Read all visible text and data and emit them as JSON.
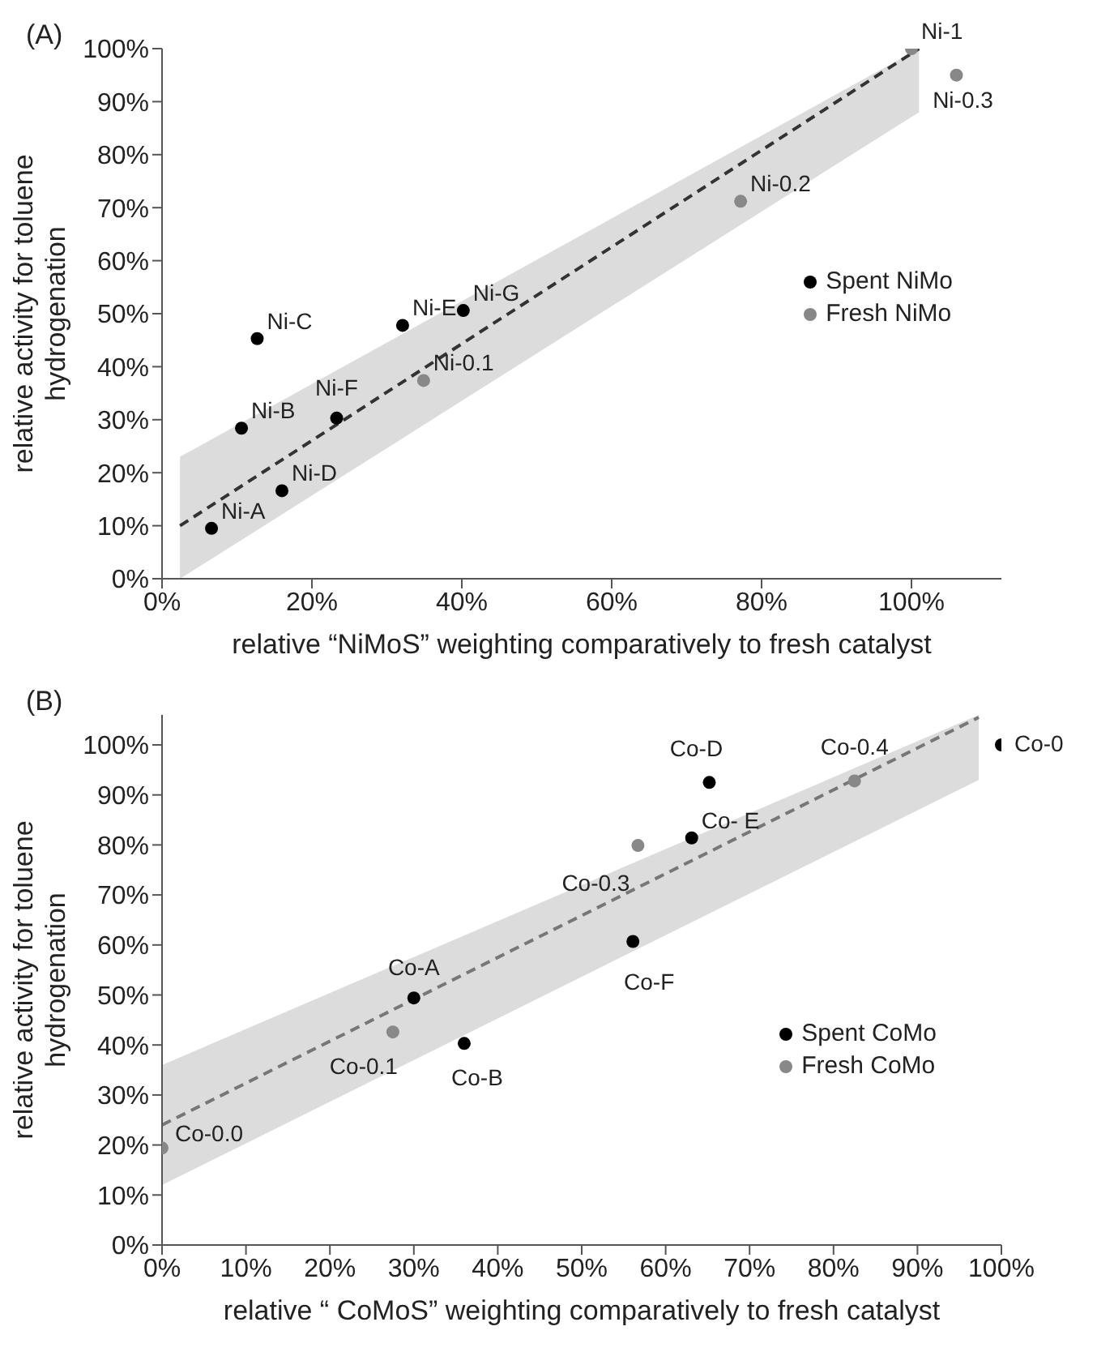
{
  "chart_data": [
    {
      "type": "scatter",
      "title": "(A)",
      "xlabel": "relative “NiMoS” weighting comparatively to fresh catalyst",
      "ylabel": "relative activity for toluene hydrogenation",
      "xlim": [
        0,
        112
      ],
      "ylim": [
        0,
        100
      ],
      "xticks": [
        {
          "value": 0,
          "label": "0%"
        },
        {
          "value": 20,
          "label": "20%"
        },
        {
          "value": 40,
          "label": "40%"
        },
        {
          "value": 60,
          "label": "60%"
        },
        {
          "value": 80,
          "label": "80%"
        },
        {
          "value": 100,
          "label": "100%"
        }
      ],
      "yticks": [
        {
          "value": 0,
          "label": "0%"
        },
        {
          "value": 10,
          "label": "10%"
        },
        {
          "value": 20,
          "label": "20%"
        },
        {
          "value": 30,
          "label": "30%"
        },
        {
          "value": 40,
          "label": "40%"
        },
        {
          "value": 50,
          "label": "50%"
        },
        {
          "value": 60,
          "label": "60%"
        },
        {
          "value": 70,
          "label": "70%"
        },
        {
          "value": 80,
          "label": "80%"
        },
        {
          "value": 90,
          "label": "90%"
        },
        {
          "value": 100,
          "label": "100%"
        }
      ],
      "grid": false,
      "legend": "right",
      "marker": "circle",
      "series": [
        {
          "type": "line",
          "color": "#333333",
          "line_style": "dashed",
          "marker": "none",
          "x": [
            2.4,
            101
          ],
          "values": [
            10,
            100
          ],
          "lower": [
            0,
            88
          ],
          "upper": [
            23,
            100
          ]
        },
        {
          "name": "Spent NiMo",
          "color": "#000000",
          "x": [
            6.6,
            10.6,
            12.7,
            16,
            32.1,
            23.3,
            40.2
          ],
          "values": [
            9.5,
            28.4,
            45.3,
            16.6,
            47.8,
            30.3,
            50.6
          ]
        },
        {
          "name": "Fresh NiMo",
          "color": "#888888",
          "x": [
            34.9,
            77.2,
            100,
            106
          ],
          "values": [
            37.4,
            71.2,
            100,
            95
          ]
        }
      ],
      "annotations": [
        {
          "text": "Ni-A",
          "x": 6.6,
          "y": 9.5
        },
        {
          "text": "Ni-B",
          "x": 10.6,
          "y": 28.4
        },
        {
          "text": "Ni-C",
          "x": 12.7,
          "y": 45.3
        },
        {
          "text": "Ni-D",
          "x": 16,
          "y": 16.6
        },
        {
          "text": "Ni-E",
          "x": 32.1,
          "y": 47.8
        },
        {
          "text": "Ni-F",
          "x": 23.3,
          "y": 30.3
        },
        {
          "text": "Ni-G",
          "x": 40.2,
          "y": 50.6
        },
        {
          "text": "Ni-0.1",
          "x": 34.9,
          "y": 37.4
        },
        {
          "text": "Ni-0.2",
          "x": 77.2,
          "y": 71.2
        },
        {
          "text": "Ni-1",
          "x": 100,
          "y": 100
        },
        {
          "text": "Ni-0.3",
          "x": 106,
          "y": 95
        }
      ]
    },
    {
      "type": "scatter",
      "title": "(B)",
      "xlabel": "relative “ CoMoS” weighting comparatively to fresh catalyst",
      "ylabel": "relative activity for toluene hydrogenation",
      "xlim": [
        0,
        100
      ],
      "ylim": [
        0,
        106
      ],
      "xticks": [
        {
          "value": 0,
          "label": "0%"
        },
        {
          "value": 10,
          "label": "10%"
        },
        {
          "value": 20,
          "label": "20%"
        },
        {
          "value": 30,
          "label": "30%"
        },
        {
          "value": 40,
          "label": "40%"
        },
        {
          "value": 50,
          "label": "50%"
        },
        {
          "value": 60,
          "label": "60%"
        },
        {
          "value": 70,
          "label": "70%"
        },
        {
          "value": 80,
          "label": "80%"
        },
        {
          "value": 90,
          "label": "90%"
        },
        {
          "value": 100,
          "label": "100%"
        }
      ],
      "yticks": [
        {
          "value": 0,
          "label": "0%"
        },
        {
          "value": 10,
          "label": "10%"
        },
        {
          "value": 20,
          "label": "20%"
        },
        {
          "value": 30,
          "label": "30%"
        },
        {
          "value": 40,
          "label": "40%"
        },
        {
          "value": 50,
          "label": "50%"
        },
        {
          "value": 60,
          "label": "60%"
        },
        {
          "value": 70,
          "label": "70%"
        },
        {
          "value": 80,
          "label": "80%"
        },
        {
          "value": 90,
          "label": "90%"
        },
        {
          "value": 100,
          "label": "100%"
        }
      ],
      "grid": false,
      "legend": "bottom right",
      "marker": "circle",
      "series": [
        {
          "type": "line",
          "color": "#777777",
          "line_style": "dashed",
          "marker": "none",
          "x": [
            0,
            97.3
          ],
          "values": [
            24,
            105.5
          ],
          "lower": [
            12,
            93
          ],
          "upper": [
            36,
            106
          ]
        },
        {
          "name": "Spent CoMo",
          "color": "#000000",
          "x": [
            30,
            36,
            65.2,
            63.1,
            56.1,
            100
          ],
          "values": [
            49.4,
            40.3,
            92.5,
            81.4,
            60.7,
            100
          ]
        },
        {
          "name": "Fresh CoMo",
          "color": "#888888",
          "x": [
            0,
            27.5,
            56.7,
            82.5
          ],
          "values": [
            19.4,
            42.6,
            79.9,
            92.8
          ]
        }
      ],
      "annotations": [
        {
          "text": "Co-A",
          "x": 30,
          "y": 49.4
        },
        {
          "text": "Co-B",
          "x": 36,
          "y": 40.3
        },
        {
          "text": "Co-D",
          "x": 65.2,
          "y": 92.5
        },
        {
          "text": "Co- E",
          "x": 63.1,
          "y": 81.4
        },
        {
          "text": "Co-F",
          "x": 56.1,
          "y": 60.7
        },
        {
          "text": "Co-0.0",
          "x": 0,
          "y": 19.4
        },
        {
          "text": "Co-0.1",
          "x": 27.5,
          "y": 42.6
        },
        {
          "text": "Co-0.3",
          "x": 56.7,
          "y": 79.9
        },
        {
          "text": "Co-0.4",
          "x": 82.5,
          "y": 92.8
        },
        {
          "text": "Co-0",
          "x": 100,
          "y": 100
        }
      ]
    }
  ]
}
